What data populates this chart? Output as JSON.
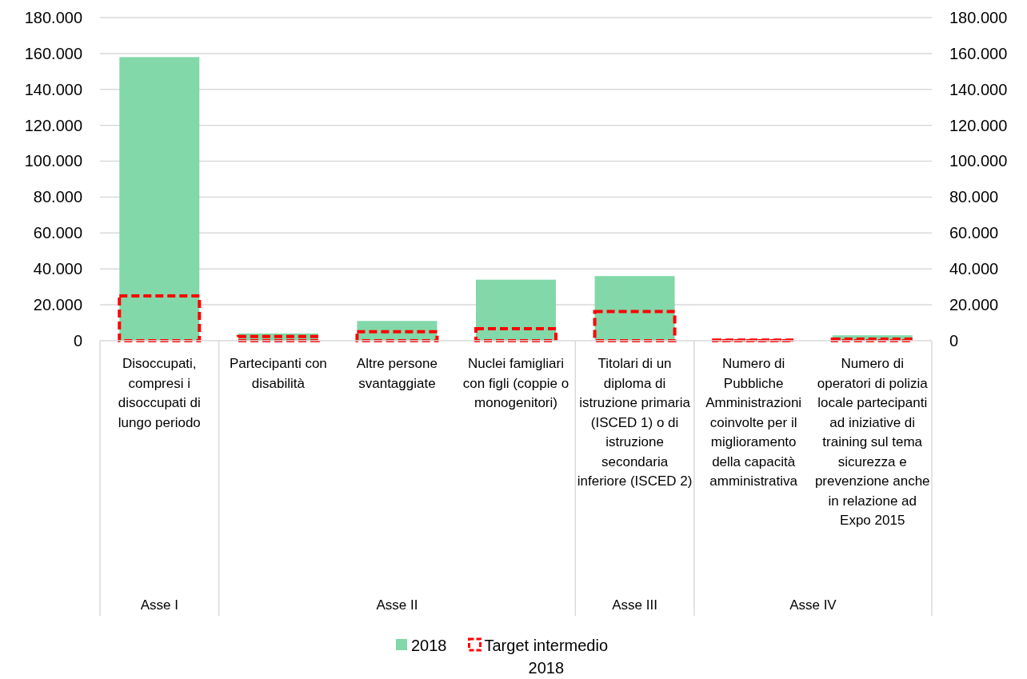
{
  "chart_data": {
    "type": "bar",
    "categories": [
      "Disoccupati, compresi i disoccupati di lungo periodo",
      "Partecipanti con disabilità",
      "Altre persone svantaggiate",
      "Nuclei famigliari con figli (coppie o monogenitori)",
      "Titolari di un diploma di istruzione primaria (ISCED 1) o di istruzione secondaria inferiore (ISCED 2)",
      "Numero di Pubbliche Amministrazioni coinvolte per il miglioramento della capacità amministrativa",
      "Numero di operatori di polizia locale partecipanti ad iniziative di training sul tema sicurezza e prevenzione anche in relazione ad Expo 2015"
    ],
    "series": [
      {
        "name": "2018",
        "color": "#82d8a8",
        "values": [
          158000,
          4000,
          11000,
          34000,
          36000,
          null,
          3000
        ]
      },
      {
        "name": "Target intermedio 2018",
        "color": "#ff0000",
        "line_style": "dashed",
        "values": [
          25000,
          2300,
          5000,
          6700,
          16300,
          300,
          900
        ]
      }
    ],
    "ylim": [
      0,
      180000
    ],
    "yticks": [
      {
        "value": 0,
        "label": "0"
      },
      {
        "value": 20000,
        "label": "20.000"
      },
      {
        "value": 40000,
        "label": "40.000"
      },
      {
        "value": 60000,
        "label": "60.000"
      },
      {
        "value": 80000,
        "label": "80.000"
      },
      {
        "value": 100000,
        "label": "100.000"
      },
      {
        "value": 120000,
        "label": "120.000"
      },
      {
        "value": 140000,
        "label": "140.000"
      },
      {
        "value": 160000,
        "label": "160.000"
      },
      {
        "value": 180000,
        "label": "180.000"
      }
    ],
    "y2lim": [
      0,
      180000
    ],
    "y2ticks": [
      {
        "value": 0,
        "label": "0"
      },
      {
        "value": 20000,
        "label": "20.000"
      },
      {
        "value": 40000,
        "label": "40.000"
      },
      {
        "value": 60000,
        "label": "60.000"
      },
      {
        "value": 80000,
        "label": "80.000"
      },
      {
        "value": 100000,
        "label": "100.000"
      },
      {
        "value": 120000,
        "label": "120.000"
      },
      {
        "value": 140000,
        "label": "140.000"
      },
      {
        "value": 160000,
        "label": "160.000"
      },
      {
        "value": 180000,
        "label": "180.000"
      }
    ],
    "grid": "y",
    "legend": "bottom",
    "annotations": [
      "Asse I",
      "Asse II",
      "Asse III",
      "Asse IV"
    ]
  }
}
